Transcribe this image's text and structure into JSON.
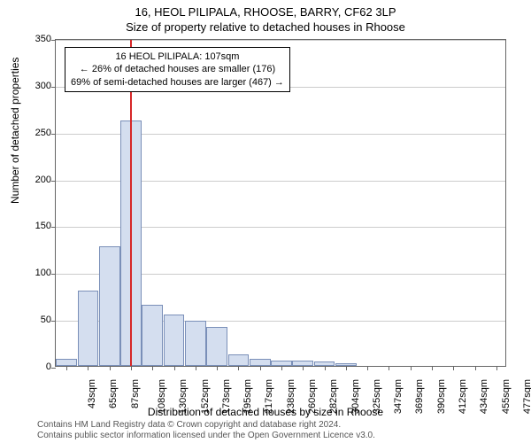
{
  "title": "16, HEOL PILIPALA, RHOOSE, BARRY, CF62 3LP",
  "subtitle": "Size of property relative to detached houses in Rhoose",
  "ylabel": "Number of detached properties",
  "xlabel": "Distribution of detached houses by size in Rhoose",
  "footer_line1": "Contains HM Land Registry data © Crown copyright and database right 2024.",
  "footer_line2": "Contains public sector information licensed under the Open Government Licence v3.0.",
  "annotation": {
    "line1": "16 HEOL PILIPALA: 107sqm",
    "line2": "← 26% of detached houses are smaller (176)",
    "line3": "69% of semi-detached houses are larger (467) →"
  },
  "chart": {
    "type": "histogram",
    "ylim": [
      0,
      350
    ],
    "ytick_step": 50,
    "bar_fill": "#d4deef",
    "bar_stroke": "#7a8fb8",
    "ref_line_color": "#d62728",
    "ref_line_x": 107,
    "grid_color": "#cccccc",
    "background": "#ffffff",
    "bins": [
      {
        "label": "43sqm",
        "x": 43,
        "v": 8
      },
      {
        "label": "65sqm",
        "x": 65,
        "v": 80
      },
      {
        "label": "87sqm",
        "x": 87,
        "v": 128
      },
      {
        "label": "108sqm",
        "x": 108,
        "v": 262
      },
      {
        "label": "130sqm",
        "x": 130,
        "v": 65
      },
      {
        "label": "152sqm",
        "x": 152,
        "v": 55
      },
      {
        "label": "173sqm",
        "x": 173,
        "v": 48
      },
      {
        "label": "195sqm",
        "x": 195,
        "v": 42
      },
      {
        "label": "217sqm",
        "x": 217,
        "v": 12
      },
      {
        "label": "238sqm",
        "x": 238,
        "v": 8
      },
      {
        "label": "260sqm",
        "x": 260,
        "v": 6
      },
      {
        "label": "282sqm",
        "x": 282,
        "v": 6
      },
      {
        "label": "304sqm",
        "x": 304,
        "v": 5
      },
      {
        "label": "325sqm",
        "x": 325,
        "v": 3
      },
      {
        "label": "347sqm",
        "x": 347,
        "v": 0
      },
      {
        "label": "369sqm",
        "x": 369,
        "v": 0
      },
      {
        "label": "390sqm",
        "x": 390,
        "v": 0
      },
      {
        "label": "412sqm",
        "x": 412,
        "v": 0
      },
      {
        "label": "434sqm",
        "x": 434,
        "v": 0
      },
      {
        "label": "455sqm",
        "x": 455,
        "v": 0
      },
      {
        "label": "477sqm",
        "x": 477,
        "v": 0
      }
    ]
  }
}
